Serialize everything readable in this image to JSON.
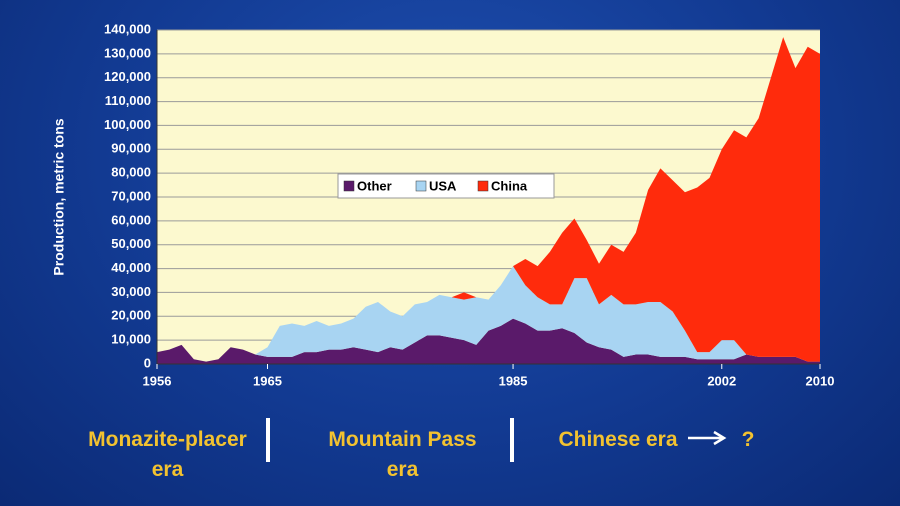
{
  "chart_data": {
    "type": "stacked_area",
    "y_label": "Production, metric tons",
    "x": [
      1956,
      1957,
      1958,
      1959,
      1960,
      1961,
      1962,
      1963,
      1964,
      1965,
      1966,
      1967,
      1968,
      1969,
      1970,
      1971,
      1972,
      1973,
      1974,
      1975,
      1976,
      1977,
      1978,
      1979,
      1980,
      1981,
      1982,
      1983,
      1984,
      1985,
      1986,
      1987,
      1988,
      1989,
      1990,
      1991,
      1992,
      1993,
      1994,
      1995,
      1996,
      1997,
      1998,
      1999,
      2000,
      2001,
      2002,
      2003,
      2004,
      2005,
      2006,
      2007,
      2008,
      2009,
      2010
    ],
    "series": [
      {
        "name": "Other",
        "color": "#5a1a6a",
        "values": [
          5000,
          6000,
          8000,
          2000,
          1000,
          2000,
          7000,
          6000,
          4000,
          3000,
          3000,
          3000,
          5000,
          5000,
          6000,
          6000,
          7000,
          6000,
          5000,
          7000,
          6000,
          9000,
          12000,
          12000,
          11000,
          10000,
          8000,
          14000,
          16000,
          19000,
          17000,
          14000,
          14000,
          15000,
          13000,
          9000,
          7000,
          6000,
          3000,
          4000,
          4000,
          3000,
          3000,
          3000,
          2000,
          2000,
          2000,
          2000,
          4000,
          3000,
          3000,
          3000,
          3000,
          1000,
          1000
        ]
      },
      {
        "name": "USA",
        "color": "#a8d4f2",
        "values": [
          0,
          0,
          0,
          0,
          0,
          0,
          0,
          0,
          0,
          4000,
          13000,
          14000,
          11000,
          13000,
          10000,
          11000,
          12000,
          18000,
          21000,
          15000,
          14000,
          16000,
          14000,
          17000,
          17000,
          17000,
          20000,
          13000,
          17000,
          22000,
          16000,
          14000,
          11000,
          10000,
          23000,
          27000,
          18000,
          23000,
          22000,
          21000,
          22000,
          23000,
          19000,
          11000,
          3000,
          3000,
          8000,
          8000,
          0,
          0,
          0,
          0,
          0,
          0,
          0
        ]
      },
      {
        "name": "China",
        "color": "#ff2b0c",
        "values": [
          0,
          0,
          0,
          0,
          0,
          0,
          0,
          0,
          0,
          0,
          0,
          0,
          0,
          0,
          0,
          0,
          0,
          0,
          0,
          0,
          0,
          0,
          0,
          0,
          0,
          3000,
          0,
          0,
          0,
          0,
          11000,
          13000,
          22000,
          30000,
          25000,
          16000,
          17000,
          21000,
          22000,
          30000,
          47000,
          56000,
          55000,
          58000,
          69000,
          73000,
          80000,
          88000,
          91000,
          100000,
          117000,
          134000,
          121000,
          132000,
          129000
        ]
      }
    ],
    "xlim": [
      1956,
      2010
    ],
    "xticks": [
      1956,
      1965,
      1985,
      2002,
      2010
    ],
    "ylim": [
      0,
      140000
    ],
    "yticks": [
      0,
      {
        "value": 10000,
        "label": "10,000"
      },
      {
        "value": 20000,
        "label": "20,000"
      },
      {
        "value": 30000,
        "label": "30,000"
      },
      {
        "value": 40000,
        "label": "40,000"
      },
      {
        "value": 50000,
        "label": "50,000"
      },
      {
        "value": 60000,
        "label": "60,000"
      },
      {
        "value": 70000,
        "label": "70,000"
      },
      {
        "value": 80000,
        "label": "80,000"
      },
      {
        "value": 90000,
        "label": "90,000"
      },
      {
        "value": 100000,
        "label": "100,000"
      },
      {
        "value": 110000,
        "label": "110,000"
      },
      {
        "value": 120000,
        "label": "120,000"
      },
      {
        "value": 130000,
        "label": "130,000"
      },
      {
        "value": 140000,
        "label": "140,000"
      }
    ],
    "grid": true,
    "annotations": [
      "Monazite-placer era",
      "Mountain Pass era",
      "Chinese era",
      "?"
    ]
  }
}
